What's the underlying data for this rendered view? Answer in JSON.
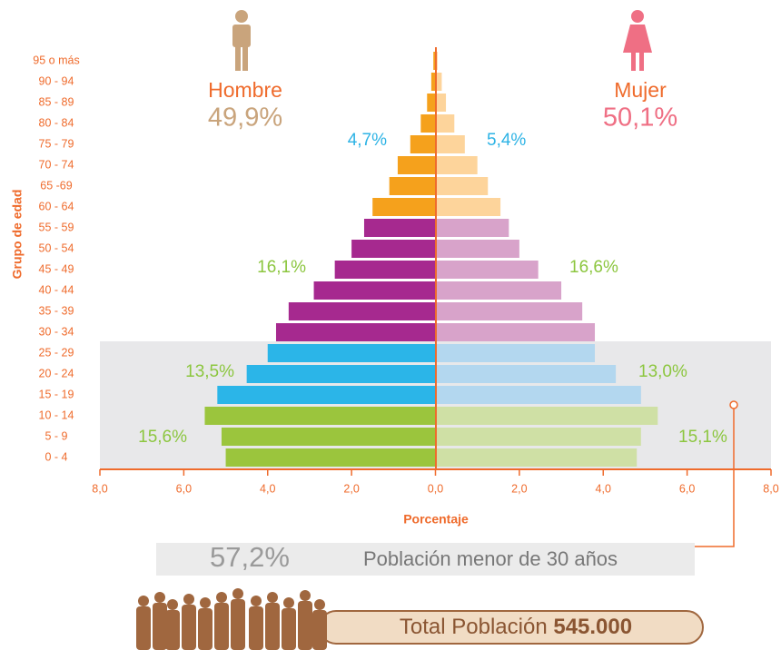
{
  "chart_data": {
    "type": "pyramid",
    "x_axis_label": "Porcentaje",
    "y_axis_label": "Grupo de edad",
    "categories": [
      "0 - 4",
      "5 - 9",
      "10 - 14",
      "15 - 19",
      "20 - 24",
      "25 - 29",
      "30 - 34",
      "35 - 39",
      "40 - 44",
      "45 - 49",
      "50 - 54",
      "55 - 59",
      "60 - 64",
      "65 -69",
      "70 - 74",
      "75 - 79",
      "80 - 84",
      "85 - 89",
      "90 - 94",
      "95 o más"
    ],
    "series": [
      {
        "name": "Hombre",
        "share_label": "49,9%",
        "direction": "left",
        "label_color": "#c9a47c",
        "values": [
          5.0,
          5.1,
          5.5,
          5.2,
          4.5,
          4.0,
          3.8,
          3.5,
          2.9,
          2.4,
          2.0,
          1.7,
          1.5,
          1.1,
          0.9,
          0.6,
          0.35,
          0.2,
          0.1,
          0.05
        ],
        "colors": [
          "#9bc53d",
          "#9bc53d",
          "#9bc53d",
          "#2bb5e8",
          "#2bb5e8",
          "#2bb5e8",
          "#a6298f",
          "#a6298f",
          "#a6298f",
          "#a6298f",
          "#a6298f",
          "#a6298f",
          "#f5a11c",
          "#f5a11c",
          "#f5a11c",
          "#f5a11c",
          "#f5a11c",
          "#f5a11c",
          "#f5a11c",
          "#f5a11c"
        ]
      },
      {
        "name": "Mujer",
        "share_label": "50,1%",
        "direction": "right",
        "label_color": "#ef6f84",
        "values": [
          4.8,
          4.9,
          5.3,
          4.9,
          4.3,
          3.8,
          3.8,
          3.5,
          3.0,
          2.45,
          2.0,
          1.75,
          1.55,
          1.25,
          1.0,
          0.7,
          0.45,
          0.25,
          0.15,
          0.05
        ],
        "colors": [
          "#cfe0a5",
          "#cfe0a5",
          "#cfe0a5",
          "#b3d7ef",
          "#b3d7ef",
          "#b3d7ef",
          "#d8a3ca",
          "#d8a3ca",
          "#d8a3ca",
          "#d8a3ca",
          "#d8a3ca",
          "#d8a3ca",
          "#fdd49b",
          "#fdd49b",
          "#fdd49b",
          "#fdd49b",
          "#fdd49b",
          "#fdd49b",
          "#fdd49b",
          "#fdd49b"
        ]
      }
    ],
    "xlim": [
      -8,
      8
    ],
    "xticks": [
      {
        "value": -8,
        "label": "8,0"
      },
      {
        "value": -6,
        "label": "6,0"
      },
      {
        "value": -4,
        "label": "4,0"
      },
      {
        "value": -2,
        "label": "2,0"
      },
      {
        "value": 0,
        "label": "0,0"
      },
      {
        "value": 2,
        "label": "2,0"
      },
      {
        "value": 4,
        "label": "4,0"
      },
      {
        "value": 6,
        "label": "6,0"
      },
      {
        "value": 8,
        "label": "8,0"
      }
    ],
    "annotations": [
      {
        "text": "4,7%",
        "color": "#2db3e5"
      },
      {
        "text": "5,4%",
        "color": "#2db3e5"
      },
      {
        "text": "16,1%",
        "color": "#8cc63f"
      },
      {
        "text": "16,6%",
        "color": "#8cc63f"
      },
      {
        "text": "13,5%",
        "color": "#8cc63f"
      },
      {
        "text": "13,0%",
        "color": "#8cc63f"
      },
      {
        "text": "15,6%",
        "color": "#8cc63f"
      },
      {
        "text": "15,1%",
        "color": "#8cc63f"
      }
    ]
  },
  "footer": {
    "under30_share": "57,2%",
    "under30_text": "Población menor de 30 años",
    "total_text": "Total Población",
    "total_value": "545.000"
  }
}
